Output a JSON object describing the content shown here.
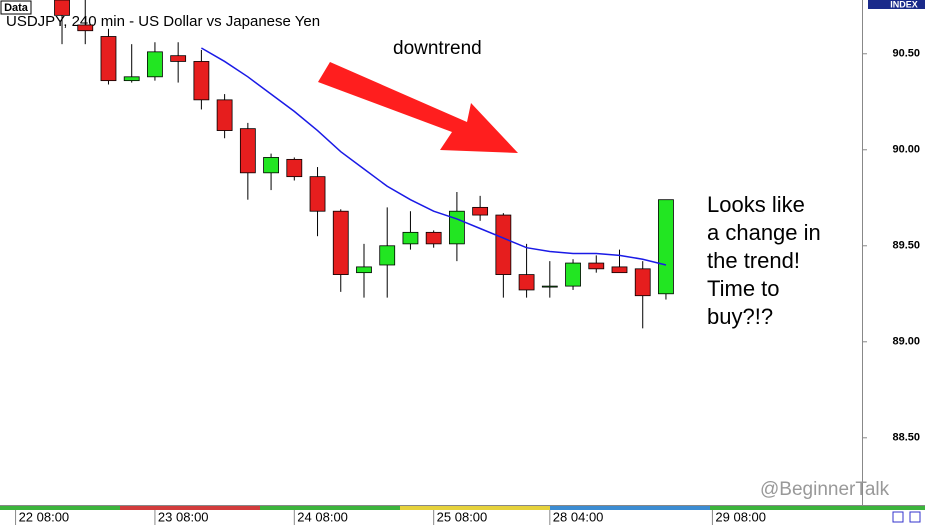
{
  "chart_data": {
    "type": "candlestick",
    "title": "USDJPY, 240 min - US Dollar vs Japanese Yen",
    "data_label": "Data",
    "index_label": "INDEX",
    "watermark": "@BeginnerTalk",
    "annotation": "downtrend",
    "callout": [
      "Looks like",
      "a change in",
      "the trend!",
      "Time to",
      "buy?!?"
    ],
    "up_color": "#22e622",
    "down_color": "#e61e1e",
    "ma_color": "#1a1ae6",
    "open": [
      90.78,
      90.65,
      90.59,
      90.36,
      90.38,
      90.49,
      90.46,
      90.26,
      90.11,
      89.88,
      89.95,
      89.86,
      89.68,
      89.36,
      89.4,
      89.51,
      89.57,
      89.51,
      89.7,
      89.66,
      89.35,
      89.29,
      89.29,
      89.41,
      89.39,
      89.38,
      89.25
    ],
    "high": [
      90.78,
      90.78,
      90.63,
      90.55,
      90.56,
      90.56,
      90.52,
      90.29,
      90.14,
      89.98,
      89.96,
      89.91,
      89.69,
      89.51,
      89.7,
      89.68,
      89.58,
      89.78,
      89.76,
      89.67,
      89.51,
      89.42,
      89.43,
      89.45,
      89.48,
      89.42,
      89.74
    ],
    "low": [
      90.55,
      90.55,
      90.34,
      90.35,
      90.36,
      90.35,
      90.21,
      90.06,
      89.74,
      89.79,
      89.84,
      89.55,
      89.26,
      89.23,
      89.23,
      89.48,
      89.49,
      89.42,
      89.63,
      89.23,
      89.23,
      89.23,
      89.27,
      89.36,
      89.36,
      89.07,
      89.22
    ],
    "close": [
      90.7,
      90.62,
      90.36,
      90.38,
      90.51,
      90.46,
      90.26,
      90.1,
      89.88,
      89.96,
      89.86,
      89.68,
      89.35,
      89.39,
      89.5,
      89.57,
      89.51,
      89.68,
      89.66,
      89.35,
      89.27,
      89.29,
      89.41,
      89.38,
      89.36,
      89.24,
      89.74
    ],
    "ma": [
      null,
      null,
      null,
      null,
      null,
      null,
      90.53,
      90.46,
      90.38,
      90.29,
      90.2,
      90.1,
      89.99,
      89.9,
      89.81,
      89.74,
      89.68,
      89.64,
      89.59,
      89.54,
      89.49,
      89.47,
      89.46,
      89.46,
      89.45,
      89.43,
      89.4
    ],
    "xlim": [
      -2.67,
      34.44
    ],
    "xticks": [
      {
        "value": -2,
        "label": "22 08:00"
      },
      {
        "value": 4,
        "label": "23 08:00"
      },
      {
        "value": 10,
        "label": "24 08:00"
      },
      {
        "value": 16,
        "label": "25 08:00"
      },
      {
        "value": 21,
        "label": "28 04:00"
      },
      {
        "value": 28,
        "label": "29 08:00"
      }
    ],
    "ylim": [
      88.15,
      90.78
    ],
    "yticks": [
      {
        "value": 88.5,
        "label": "88.50"
      },
      {
        "value": 89,
        "label": "89.00"
      },
      {
        "value": 89.5,
        "label": "89.50"
      },
      {
        "value": 90,
        "label": "90.00"
      },
      {
        "value": 90.5,
        "label": "90.50"
      }
    ]
  }
}
